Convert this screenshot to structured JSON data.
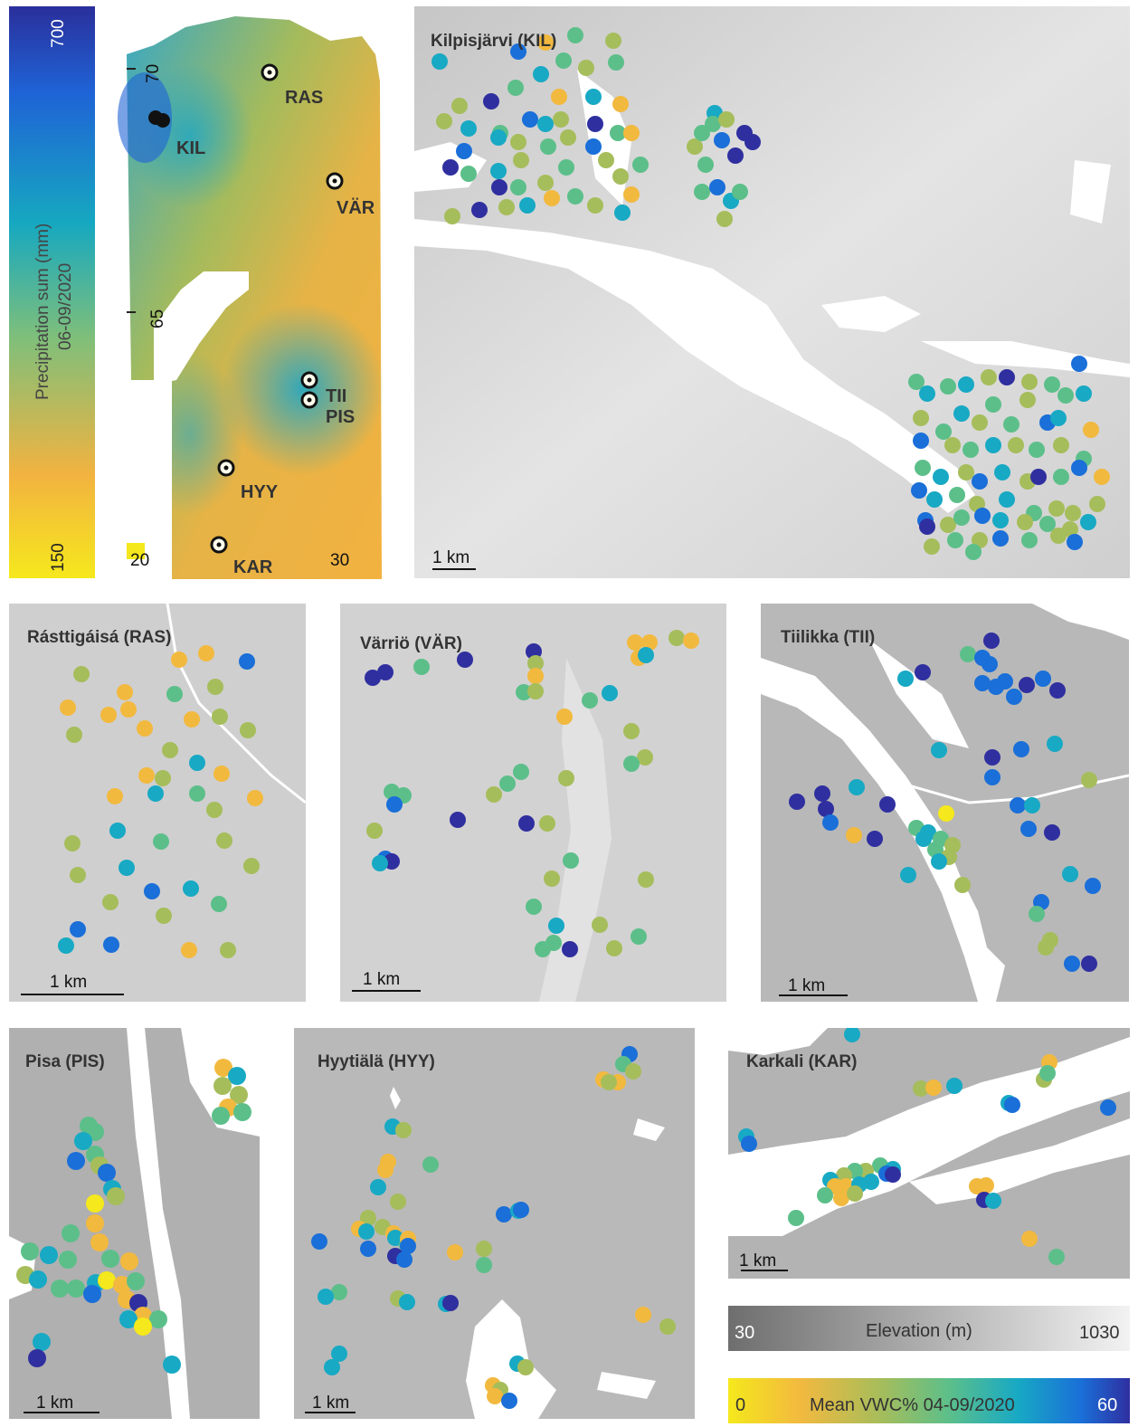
{
  "precip_bar": {
    "label_line1": "Precipitation sum (mm)",
    "label_line2": "06-09/2020",
    "max": "700",
    "min": "150"
  },
  "overview": {
    "tick_lat_70": "70",
    "tick_lat_65": "65",
    "tick_lon_20": "20",
    "tick_lon_30": "30",
    "sites": [
      "RAS",
      "KIL",
      "VÄR",
      "TII",
      "PIS",
      "HYY",
      "KAR"
    ]
  },
  "panels": {
    "kil": {
      "title": "Kilpisjärvi (KIL)",
      "scale": "1 km"
    },
    "ras": {
      "title": "Rásttigáisá (RAS)",
      "scale": "1 km"
    },
    "var": {
      "title": "Värriö (VÄR)",
      "scale": "1 km"
    },
    "tii": {
      "title": "Tiilikka (TII)",
      "scale": "1 km"
    },
    "pis": {
      "title": "Pisa (PIS)",
      "scale": "1 km"
    },
    "hyy": {
      "title": "Hyytiälä (HYY)",
      "scale": "1 km"
    },
    "kar": {
      "title": "Karkali (KAR)",
      "scale": "1 km"
    }
  },
  "elevation_legend": {
    "label": "Elevation (m)",
    "min": "30",
    "max": "1030"
  },
  "vwc_legend": {
    "label": "Mean VWC% 04-09/2020",
    "min": "0",
    "max": "60"
  },
  "colors": {
    "vwc_scale": [
      "#f5e81c",
      "#f2b93f",
      "#a6bd5b",
      "#5cbf8a",
      "#18a9c4",
      "#1a6fd8",
      "#2f2fa0"
    ],
    "precip_scale": [
      "#f5e81c",
      "#f2b340",
      "#7fbf7a",
      "#16a8c0",
      "#1f63d6",
      "#2a2f9b"
    ]
  }
}
